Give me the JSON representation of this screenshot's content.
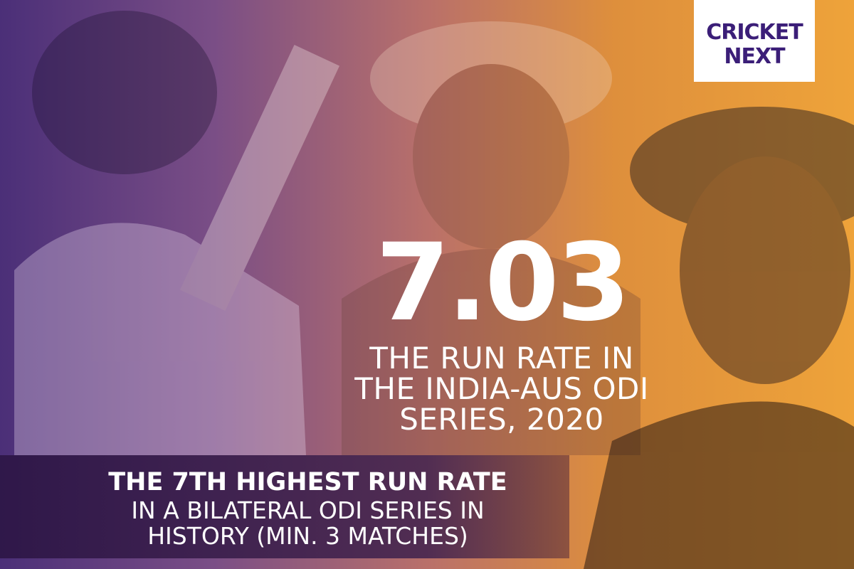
{
  "headline": {
    "number": "7.03",
    "lines": [
      "THE RUN RATE IN",
      "THE INDIA-AUS ODI",
      "SERIES, 2020"
    ]
  },
  "footer": {
    "lines": [
      "THE 7TH HIGHEST RUN RATE",
      "IN A BILATERAL ODI SERIES IN",
      "HISTORY (MIN. 3 MATCHES)"
    ]
  },
  "logo": {
    "line1": "CRICKET",
    "line2": "NEXT"
  }
}
